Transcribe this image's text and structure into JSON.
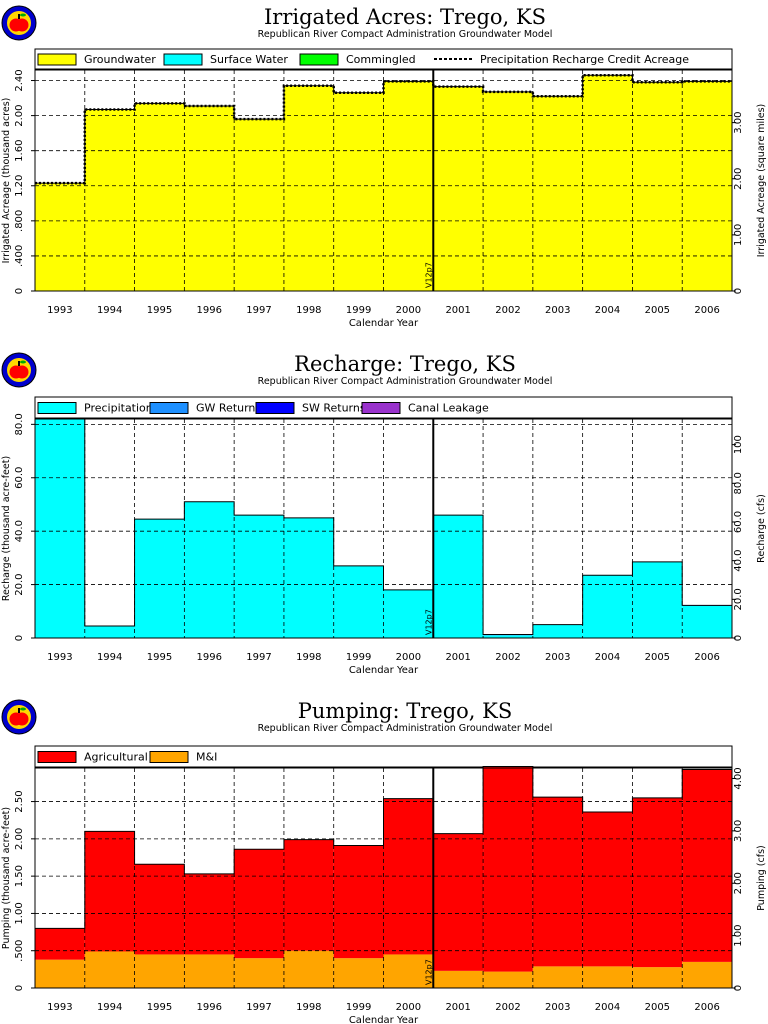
{
  "colors": {
    "groundwater": "#ffff00",
    "surface_water": "#00ffff",
    "commingled": "#00ff00",
    "precipitation": "#00ffff",
    "gw_returns": "#1e90ff",
    "sw_returns": "#0000ff",
    "canal_leakage": "#9932cc",
    "agricultural": "#ff0000",
    "mni": "#ffa500",
    "logo_ring": "#0000cd",
    "logo_inner": "#ffd700",
    "logo_apple": "#ff0000"
  },
  "chart_data": [
    {
      "type": "area",
      "title": "Irrigated Acres: Trego, KS",
      "subtitle": "Republican River Compact Administration Groundwater Model",
      "xlabel": "Calendar Year",
      "ylabel": "Irrigated Acreage (thousand acres)",
      "ylabel_right": "Irrigated Acreage (square miles)",
      "categories": [
        "1993",
        "1994",
        "1995",
        "1996",
        "1997",
        "1998",
        "1999",
        "2000",
        "2001",
        "2002",
        "2003",
        "2004",
        "2005",
        "2006"
      ],
      "ylim": [
        0,
        2.52
      ],
      "yticks": [
        0,
        0.4,
        0.8,
        1.2,
        1.6,
        2.0,
        2.4
      ],
      "yticklabels": [
        "0",
        ".400",
        ".800",
        "1.20",
        "1.60",
        "2.00",
        "2.40"
      ],
      "y2lim": [
        0,
        3.9375
      ],
      "y2ticks": [
        0,
        1.0,
        2.0,
        3.0
      ],
      "y2ticklabels": [
        "0",
        "1.00",
        "2.00",
        "3.00"
      ],
      "marker_label": "V12p7",
      "marker_after_index": 7,
      "legend": [
        "Groundwater",
        "Surface Water",
        "Commingled",
        "Precipitation Recharge Credit Acreage"
      ],
      "series": [
        {
          "name": "Groundwater",
          "values": [
            1.23,
            2.07,
            2.14,
            2.11,
            1.96,
            2.34,
            2.26,
            2.39,
            2.33,
            2.27,
            2.22,
            2.46,
            2.38,
            2.39
          ]
        },
        {
          "name": "Surface Water",
          "values": [
            0,
            0,
            0,
            0,
            0,
            0,
            0,
            0,
            0,
            0,
            0,
            0,
            0,
            0
          ]
        },
        {
          "name": "Commingled",
          "values": [
            0,
            0,
            0,
            0,
            0,
            0,
            0,
            0,
            0,
            0,
            0,
            0,
            0,
            0
          ]
        },
        {
          "name": "Precipitation Recharge Credit Acreage",
          "values": [
            1.23,
            2.07,
            2.14,
            2.11,
            1.96,
            2.34,
            2.26,
            2.39,
            2.33,
            2.27,
            2.22,
            2.46,
            2.38,
            2.39
          ]
        }
      ]
    },
    {
      "type": "area",
      "title": "Recharge: Trego, KS",
      "subtitle": "Republican River Compact Administration Groundwater Model",
      "xlabel": "Calendar Year",
      "ylabel": "Recharge (thousand acre-feet)",
      "ylabel_right": "Recharge (cfs)",
      "categories": [
        "1993",
        "1994",
        "1995",
        "1996",
        "1997",
        "1998",
        "1999",
        "2000",
        "2001",
        "2002",
        "2003",
        "2004",
        "2005",
        "2006"
      ],
      "ylim": [
        0,
        82
      ],
      "yticks": [
        0,
        20,
        40,
        60,
        80
      ],
      "yticklabels": [
        "0",
        "20.0",
        "40.0",
        "60.0",
        "80.0"
      ],
      "y2lim": [
        0,
        113.26
      ],
      "y2ticks": [
        0,
        20,
        40,
        60,
        80,
        100
      ],
      "y2ticklabels": [
        "0",
        "20.0",
        "40.0",
        "60.0",
        "80.0",
        "100"
      ],
      "marker_label": "V12p7",
      "marker_after_index": 7,
      "legend": [
        "Precipitation",
        "GW Returns",
        "SW Returns",
        "Canal Leakage"
      ],
      "series": [
        {
          "name": "Precipitation",
          "values": [
            82.0,
            4.5,
            44.5,
            51.0,
            46.0,
            45.0,
            27.0,
            18.0,
            46.0,
            1.0,
            5.0,
            23.5,
            28.5,
            12.0
          ]
        },
        {
          "name": "GW Returns",
          "values": [
            0,
            0,
            0,
            0,
            0,
            0,
            0,
            0,
            0,
            0.3,
            0,
            0,
            0,
            0.2
          ]
        },
        {
          "name": "SW Returns",
          "values": [
            0,
            0,
            0,
            0,
            0,
            0,
            0,
            0,
            0,
            0,
            0,
            0,
            0,
            0
          ]
        },
        {
          "name": "Canal Leakage",
          "values": [
            0,
            0,
            0,
            0,
            0,
            0,
            0,
            0,
            0,
            0,
            0,
            0,
            0,
            0
          ]
        }
      ]
    },
    {
      "type": "area",
      "title": "Pumping: Trego, KS",
      "subtitle": "Republican River Compact Administration Groundwater Model",
      "xlabel": "Calendar Year",
      "ylabel": "Pumping (thousand acre-feet)",
      "ylabel_right": "Pumping (cfs)",
      "categories": [
        "1993",
        "1994",
        "1995",
        "1996",
        "1997",
        "1998",
        "1999",
        "2000",
        "2001",
        "2002",
        "2003",
        "2004",
        "2005",
        "2006"
      ],
      "ylim": [
        0,
        2.95
      ],
      "yticks": [
        0,
        0.5,
        1.0,
        1.5,
        2.0,
        2.5
      ],
      "yticklabels": [
        "0",
        ".500",
        "1.00",
        "1.50",
        "2.00",
        "2.50"
      ],
      "y2lim": [
        0,
        4.2
      ],
      "y2ticks": [
        0,
        1.0,
        2.0,
        3.0,
        4.0
      ],
      "y2ticklabels": [
        "0",
        "1.00",
        "2.00",
        "3.00",
        "4.00"
      ],
      "marker_label": "V12p7",
      "marker_after_index": 7,
      "legend": [
        "Agricultural",
        "M&I"
      ],
      "series": [
        {
          "name": "M&I",
          "values": [
            0.38,
            0.49,
            0.45,
            0.45,
            0.4,
            0.5,
            0.4,
            0.45,
            0.23,
            0.22,
            0.29,
            0.29,
            0.28,
            0.35
          ]
        },
        {
          "name": "Agricultural",
          "values": [
            0.42,
            1.61,
            1.21,
            1.08,
            1.46,
            1.49,
            1.51,
            2.09,
            1.84,
            2.75,
            2.27,
            2.07,
            2.27,
            2.58
          ]
        }
      ]
    }
  ]
}
